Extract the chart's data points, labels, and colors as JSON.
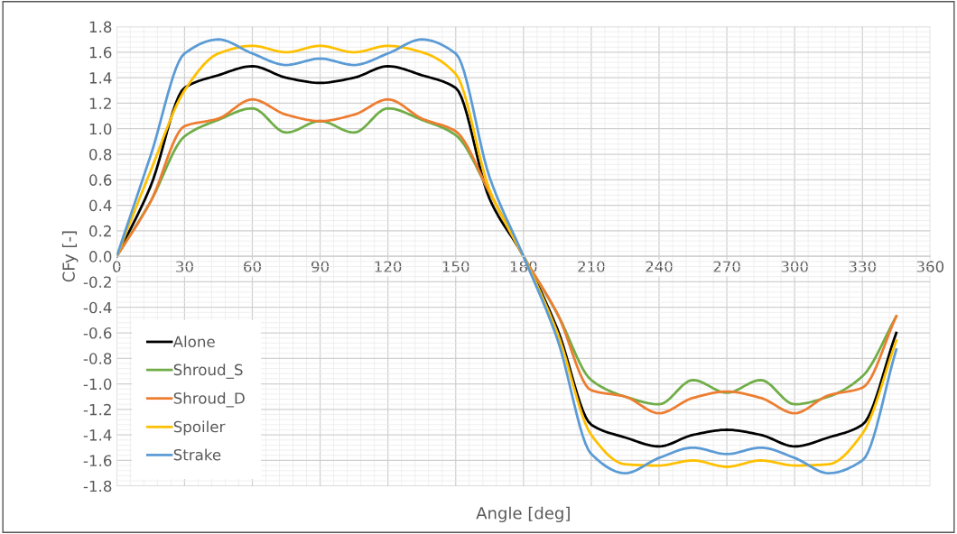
{
  "chart_data": {
    "type": "line",
    "xlabel": "Angle [deg]",
    "ylabel": "CFy [-]",
    "x": [
      0,
      15,
      30,
      45,
      60,
      75,
      90,
      105,
      120,
      135,
      150,
      165,
      180,
      195,
      210,
      225,
      240,
      255,
      270,
      285,
      300,
      315,
      330,
      345
    ],
    "series": [
      {
        "name": "Alone",
        "color": "#000000",
        "values": [
          0,
          0.55,
          1.32,
          1.42,
          1.49,
          1.4,
          1.36,
          1.4,
          1.49,
          1.42,
          1.32,
          0.45,
          0,
          -0.57,
          -1.32,
          -1.42,
          -1.49,
          -1.4,
          -1.36,
          -1.4,
          -1.49,
          -1.42,
          -1.32,
          -0.6
        ]
      },
      {
        "name": "Shroud_S",
        "color": "#70ad47",
        "values": [
          0,
          0.43,
          0.94,
          1.07,
          1.16,
          0.97,
          1.06,
          0.97,
          1.16,
          1.07,
          0.95,
          0.5,
          0,
          -0.45,
          -0.97,
          -1.1,
          -1.16,
          -0.97,
          -1.07,
          -0.97,
          -1.16,
          -1.1,
          -0.94,
          -0.47
        ]
      },
      {
        "name": "Shroud_D",
        "color": "#ed7d31",
        "values": [
          0,
          0.43,
          1.02,
          1.08,
          1.23,
          1.11,
          1.06,
          1.11,
          1.23,
          1.08,
          0.98,
          0.5,
          0,
          -0.45,
          -1.05,
          -1.1,
          -1.23,
          -1.11,
          -1.06,
          -1.11,
          -1.23,
          -1.09,
          -1.03,
          -0.47
        ]
      },
      {
        "name": "Spoiler",
        "color": "#ffc000",
        "values": [
          0,
          0.67,
          1.3,
          1.59,
          1.65,
          1.6,
          1.65,
          1.6,
          1.65,
          1.6,
          1.43,
          0.52,
          0,
          -0.6,
          -1.4,
          -1.63,
          -1.64,
          -1.6,
          -1.65,
          -1.6,
          -1.64,
          -1.63,
          -1.39,
          -0.66
        ]
      },
      {
        "name": "Strake",
        "color": "#5b9bd5",
        "values": [
          0,
          0.79,
          1.59,
          1.7,
          1.59,
          1.5,
          1.55,
          1.5,
          1.59,
          1.7,
          1.59,
          0.62,
          0,
          -0.65,
          -1.55,
          -1.7,
          -1.58,
          -1.5,
          -1.55,
          -1.5,
          -1.58,
          -1.7,
          -1.6,
          -0.73
        ]
      }
    ],
    "xlim": [
      0,
      360
    ],
    "xticks": [
      0,
      30,
      60,
      90,
      120,
      150,
      180,
      210,
      240,
      270,
      300,
      330,
      360
    ],
    "ylim": [
      -1.8,
      1.8
    ],
    "yticks": [
      {
        "value": -1.8,
        "label": "-1.8"
      },
      {
        "value": -1.6,
        "label": "-1.6"
      },
      {
        "value": -1.4,
        "label": "-1.4"
      },
      {
        "value": -1.2,
        "label": "-1.2"
      },
      {
        "value": -1.0,
        "label": "-1.0"
      },
      {
        "value": -0.8,
        "label": "-0.8"
      },
      {
        "value": -0.6,
        "label": "-0.6"
      },
      {
        "value": -0.4,
        "label": "-0.4"
      },
      {
        "value": -0.2,
        "label": "-0.2"
      },
      {
        "value": 0,
        "label": "0.0"
      },
      {
        "value": 0.2,
        "label": "0.2"
      },
      {
        "value": 0.4,
        "label": "0.4"
      },
      {
        "value": 0.6,
        "label": "0.6"
      },
      {
        "value": 0.8,
        "label": "0.8"
      },
      {
        "value": 1.0,
        "label": "1.0"
      },
      {
        "value": 1.2,
        "label": "1.2"
      },
      {
        "value": 1.4,
        "label": "1.4"
      },
      {
        "value": 1.6,
        "label": "1.6"
      },
      {
        "value": 1.8,
        "label": "1.8"
      }
    ],
    "grid": true,
    "legend": "bottom left",
    "marker": "none",
    "line_style": "solid"
  }
}
